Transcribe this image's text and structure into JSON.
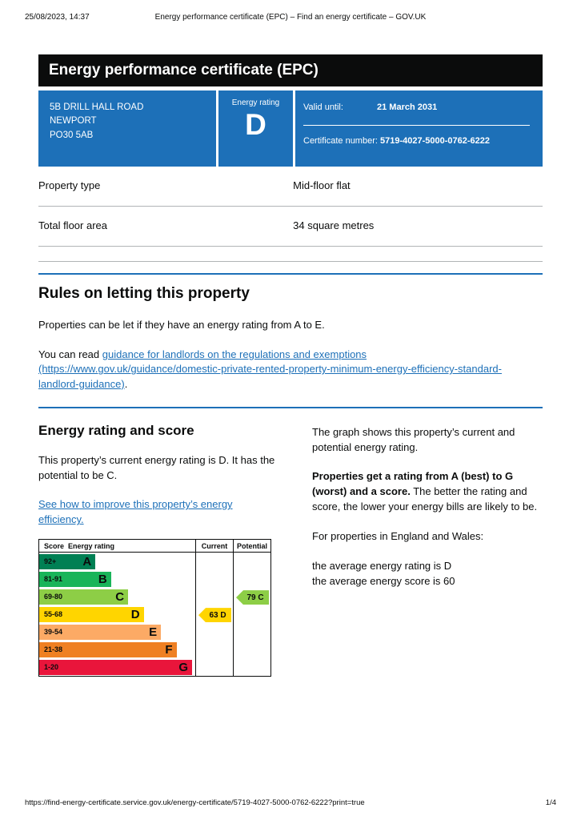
{
  "print_header": {
    "datetime": "25/08/2023, 14:37",
    "title": "Energy performance certificate (EPC) – Find an energy certificate – GOV.UK"
  },
  "banner": {
    "title": "Energy performance certificate (EPC)"
  },
  "summary": {
    "address_lines": [
      "5B DRILL HALL ROAD",
      "NEWPORT",
      "PO30 5AB"
    ],
    "energy_rating_label": "Energy rating",
    "energy_rating": "D",
    "valid_until_label": "Valid until:",
    "valid_until": "21 March 2031",
    "certificate_number_label": "Certificate number:",
    "certificate_number": "5719-4027-5000-0762-6222"
  },
  "property_details": [
    {
      "label": "Property type",
      "value": "Mid-floor flat"
    },
    {
      "label": "Total floor area",
      "value": "34 square metres"
    }
  ],
  "letting_rules": {
    "heading": "Rules on letting this property",
    "paragraph1": "Properties can be let if they have an energy rating from A to E.",
    "paragraph2_prefix": "You can read ",
    "link_text": "guidance for landlords on the regulations and exemptions (https://www.gov.uk/guidance/domestic-private-rented-property-minimum-energy-efficiency-standard-landlord-guidance)",
    "paragraph2_suffix": "."
  },
  "rating_section": {
    "heading": "Energy rating and score",
    "paragraph1": "This property’s current energy rating is D. It has the potential to be C.",
    "improve_link": "See how to improve this property’s energy efficiency.",
    "right_column": {
      "paragraph1": "The graph shows this property’s current and potential energy rating.",
      "paragraph2_bold": "Properties get a rating from A (best) to G (worst) and a score.",
      "paragraph2_rest": " The better the rating and score, the lower your energy bills are likely to be.",
      "paragraph3": "For properties in England and Wales:",
      "average_rating_line": "the average energy rating is D",
      "average_score_line": "the average energy score is 60"
    }
  },
  "chart_data": {
    "type": "bar",
    "title": "Energy rating and score chart",
    "columns": [
      "Score",
      "Energy rating",
      "Current",
      "Potential"
    ],
    "bands": [
      {
        "score": "92+",
        "letter": "A",
        "color": "#008054",
        "width_pct": 36
      },
      {
        "score": "81-91",
        "letter": "B",
        "color": "#19b459",
        "width_pct": 46
      },
      {
        "score": "69-80",
        "letter": "C",
        "color": "#8dce46",
        "width_pct": 57
      },
      {
        "score": "55-68",
        "letter": "D",
        "color": "#ffd500",
        "width_pct": 67
      },
      {
        "score": "39-54",
        "letter": "E",
        "color": "#fcaa65",
        "width_pct": 78
      },
      {
        "score": "21-38",
        "letter": "F",
        "color": "#ef8023",
        "width_pct": 88
      },
      {
        "score": "1-20",
        "letter": "G",
        "color": "#e9153b",
        "width_pct": 98
      }
    ],
    "current": {
      "value": 63,
      "letter": "D",
      "band_index": 3,
      "color": "#ffd500"
    },
    "potential": {
      "value": 79,
      "letter": "C",
      "band_index": 2,
      "color": "#8dce46"
    }
  },
  "footer": {
    "url": "https://find-energy-certificate.service.gov.uk/energy-certificate/5719-4027-5000-0762-6222?print=true",
    "page": "1/4"
  },
  "colors": {
    "banner_bg": "#0b0c0c",
    "panel_bg": "#1d70b8",
    "link": "#1d70b8",
    "divider": "#b1b4b6"
  }
}
